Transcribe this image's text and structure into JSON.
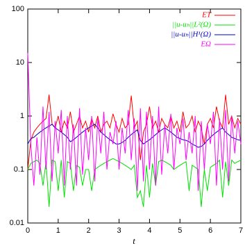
{
  "chart_data": {
    "type": "line",
    "xlabel": "t",
    "log_y": true,
    "xlim": [
      0,
      7
    ],
    "xticks": [
      0,
      1,
      2,
      3,
      4,
      5,
      6,
      7
    ],
    "ylim": [
      0.01,
      100
    ],
    "yticks": [
      0.01,
      0.1,
      1,
      10,
      100
    ],
    "x": [
      0,
      0.1,
      0.2,
      0.3,
      0.4,
      0.5,
      0.6,
      0.7,
      0.8,
      0.9,
      1,
      1.1,
      1.2,
      1.3,
      1.4,
      1.5,
      1.6,
      1.7,
      1.8,
      1.9,
      2,
      2.1,
      2.2,
      2.3,
      2.4,
      2.5,
      2.6,
      2.7,
      2.8,
      2.9,
      3,
      3.1,
      3.2,
      3.3,
      3.4,
      3.5,
      3.6,
      3.7,
      3.8,
      3.9,
      4,
      4.1,
      4.2,
      4.3,
      4.4,
      4.5,
      4.6,
      4.7,
      4.8,
      4.9,
      5,
      5.1,
      5.2,
      5.3,
      5.4,
      5.5,
      5.6,
      5.7,
      5.8,
      5.9,
      6,
      6.1,
      6.2,
      6.3,
      6.4,
      6.5,
      6.6,
      6.7,
      6.8,
      6.9,
      7
    ],
    "series": [
      {
        "name": "ET",
        "color": "#ff0000",
        "values": [
          0.1,
          0.35,
          0.5,
          0.6,
          0.7,
          0.8,
          0.9,
          2.5,
          0.7,
          0.6,
          1.0,
          0.5,
          0.8,
          0.6,
          1.2,
          0.5,
          0.7,
          1.0,
          0.6,
          0.8,
          0.5,
          0.9,
          0.6,
          1.0,
          0.5,
          0.7,
          0.8,
          0.6,
          1.1,
          0.7,
          0.5,
          0.9,
          0.6,
          0.7,
          2.4,
          0.6,
          0.8,
          0.15,
          0.5,
          0.7,
          1.5,
          0.6,
          0.8,
          0.5,
          0.9,
          0.7,
          0.6,
          1.0,
          0.6,
          0.8,
          0.5,
          1.2,
          0.6,
          0.7,
          1.0,
          0.5,
          0.8,
          0.6,
          0.3,
          0.7,
          0.9,
          0.6,
          1.5,
          0.8,
          0.6,
          2.5,
          0.7,
          1.0,
          0.6,
          0.9,
          0.7
        ]
      },
      {
        "name": "||u-uₕ||L²(Ω)",
        "color": "#00e000",
        "values": [
          0.1,
          0.13,
          0.14,
          0.15,
          0.13,
          0.05,
          0.14,
          0.02,
          0.15,
          0.14,
          0.04,
          0.15,
          0.03,
          0.14,
          0.13,
          0.04,
          0.12,
          0.11,
          0.05,
          0.1,
          0.1,
          0.04,
          0.1,
          0.11,
          0.12,
          0.13,
          0.14,
          0.15,
          0.16,
          0.15,
          0.14,
          0.13,
          0.12,
          0.11,
          0.1,
          0.12,
          0.03,
          0.04,
          0.02,
          0.12,
          0.03,
          0.13,
          0.05,
          0.14,
          0.15,
          0.14,
          0.13,
          0.12,
          0.1,
          0.11,
          0.12,
          0.13,
          0.14,
          0.04,
          0.12,
          0.11,
          0.1,
          0.02,
          0.1,
          0.04,
          0.11,
          0.12,
          0.13,
          0.15,
          0.03,
          0.14,
          0.05,
          0.15,
          0.13,
          0.14,
          0.15
        ]
      },
      {
        "name": "||u-uₕ||H¹(Ω)",
        "color": "#0000c0",
        "values": [
          0.3,
          0.38,
          0.4,
          0.45,
          0.5,
          0.55,
          0.6,
          0.65,
          0.7,
          0.6,
          0.55,
          0.5,
          0.45,
          0.4,
          0.33,
          0.36,
          0.4,
          0.45,
          0.5,
          0.55,
          0.6,
          0.65,
          0.7,
          0.6,
          0.5,
          0.45,
          0.4,
          0.36,
          0.33,
          0.3,
          0.3,
          0.32,
          0.35,
          0.4,
          0.45,
          0.5,
          0.55,
          0.35,
          0.3,
          0.33,
          0.36,
          0.4,
          0.45,
          0.5,
          0.55,
          0.6,
          0.55,
          0.5,
          0.45,
          0.4,
          0.38,
          0.36,
          0.35,
          0.33,
          0.3,
          0.28,
          0.26,
          0.27,
          0.3,
          0.35,
          0.4,
          0.45,
          0.5,
          0.55,
          0.6,
          0.5,
          0.45,
          0.4,
          0.38,
          0.36,
          0.35
        ]
      },
      {
        "name": "EΩ",
        "color": "#ff00ff",
        "values": [
          15,
          0.3,
          0.05,
          0.4,
          0.08,
          1.5,
          0.1,
          1.2,
          0.06,
          0.8,
          0.2,
          1.3,
          0.05,
          1.0,
          0.1,
          0.7,
          0.05,
          1.4,
          0.08,
          0.6,
          0.15,
          1.0,
          0.06,
          0.9,
          0.2,
          1.2,
          0.1,
          0.5,
          0.3,
          0.8,
          0.1,
          0.6,
          0.2,
          1.3,
          0.15,
          0.9,
          0.04,
          1.4,
          0.06,
          1.2,
          0.1,
          1.0,
          0.05,
          1.5,
          0.08,
          0.7,
          0.2,
          1.1,
          0.1,
          0.6,
          0.3,
          0.9,
          0.15,
          0.5,
          0.2,
          1.0,
          0.04,
          0.8,
          0.1,
          0.7,
          0.3,
          1.2,
          0.05,
          0.9,
          0.1,
          1.3,
          0.06,
          1.0,
          0.2,
          0.8,
          0.3
        ]
      }
    ]
  }
}
